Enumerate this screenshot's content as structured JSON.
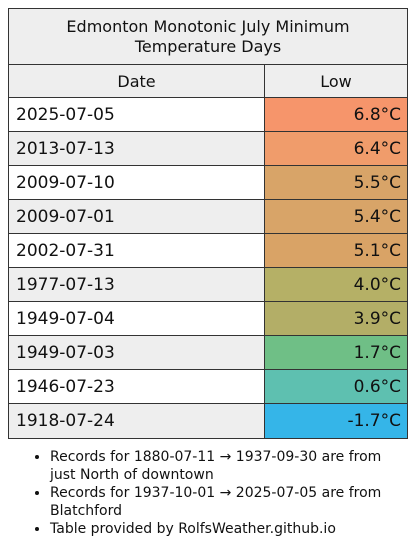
{
  "table": {
    "title": "Edmonton Monotonic July Minimum Temperature Days",
    "headers": [
      "Date",
      "Low"
    ],
    "rows": [
      {
        "date": "2025-07-05",
        "low": "6.8°C",
        "color": "#f6956b"
      },
      {
        "date": "2013-07-13",
        "low": "6.4°C",
        "color": "#f09c6b"
      },
      {
        "date": "2009-07-10",
        "low": "5.5°C",
        "color": "#d8a468"
      },
      {
        "date": "2009-07-01",
        "low": "5.4°C",
        "color": "#d8a468"
      },
      {
        "date": "2002-07-31",
        "low": "5.1°C",
        "color": "#d9a366"
      },
      {
        "date": "1977-07-13",
        "low": "4.0°C",
        "color": "#b5b066"
      },
      {
        "date": "1949-07-04",
        "low": "3.9°C",
        "color": "#b3ae67"
      },
      {
        "date": "1949-07-03",
        "low": "1.7°C",
        "color": "#6fbf86"
      },
      {
        "date": "1946-07-23",
        "low": "0.6°C",
        "color": "#5ec0b0"
      },
      {
        "date": "1918-07-24",
        "low": "-1.7°C",
        "color": "#35b5e8"
      }
    ]
  },
  "notes": [
    "Records for 1880-07-11 → 1937-09-30 are from just North of downtown",
    "Records for 1937-10-01 → 2025-07-05 are from Blatchford",
    "Table provided by RolfsWeather.github.io"
  ]
}
